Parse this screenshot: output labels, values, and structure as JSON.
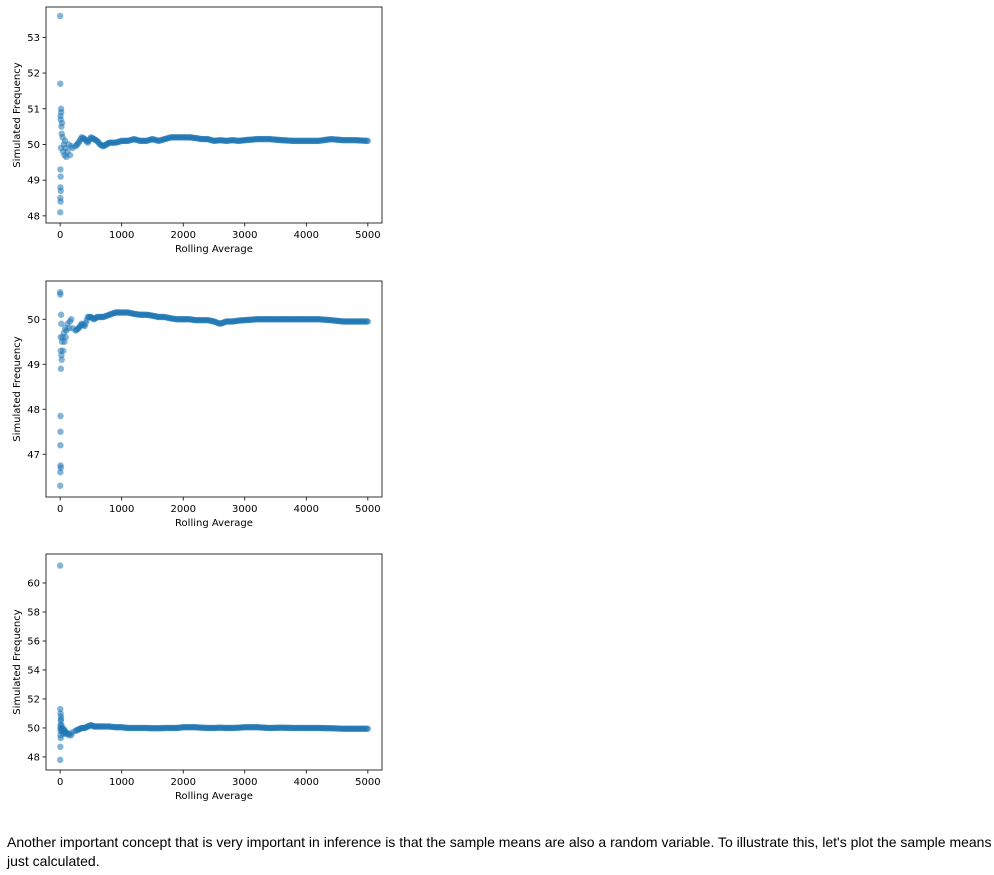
{
  "chart_data": [
    {
      "type": "scatter",
      "xlabel": "Rolling Average",
      "ylabel": "Simulated Frequency",
      "xlim": [
        -230,
        5230
      ],
      "ylim": [
        47.8,
        53.85
      ],
      "xticks": [
        0,
        1000,
        2000,
        3000,
        4000,
        5000
      ],
      "yticks": [
        48,
        49,
        50,
        51,
        52,
        53
      ],
      "grid": false,
      "legend": "none",
      "color": "#1f77b4",
      "series": [
        {
          "x": [
            0,
            1,
            2,
            3,
            4,
            5,
            6,
            7,
            8,
            9,
            10,
            12,
            15,
            18,
            20,
            25,
            30,
            40,
            50,
            60,
            70,
            80,
            90,
            100,
            120,
            140,
            160,
            180,
            200,
            250,
            300,
            350,
            400,
            450,
            500,
            550,
            600,
            650,
            700,
            750,
            800,
            900,
            1000,
            1100,
            1200,
            1300,
            1400,
            1500,
            1600,
            1700,
            1800,
            1900,
            2000,
            2100,
            2200,
            2300,
            2400,
            2500,
            2600,
            2700,
            2800,
            2900,
            3000,
            3200,
            3400,
            3600,
            3800,
            4000,
            4200,
            4400,
            4600,
            4800,
            5000
          ],
          "y": [
            53.6,
            48.1,
            51.7,
            48.5,
            48.8,
            49.3,
            50.8,
            48.4,
            49.1,
            50.7,
            48.7,
            49.9,
            51.0,
            50.9,
            50.5,
            50.3,
            50.6,
            50.2,
            49.8,
            50.0,
            49.7,
            50.1,
            49.9,
            49.65,
            49.8,
            50.0,
            49.7,
            49.95,
            49.9,
            49.95,
            50.05,
            50.2,
            50.15,
            50.05,
            50.2,
            50.15,
            50.1,
            50.0,
            49.95,
            50.0,
            50.05,
            50.05,
            50.1,
            50.1,
            50.15,
            50.1,
            50.1,
            50.15,
            50.1,
            50.15,
            50.2,
            50.2,
            50.2,
            50.2,
            50.18,
            50.15,
            50.15,
            50.1,
            50.12,
            50.1,
            50.12,
            50.1,
            50.12,
            50.15,
            50.15,
            50.12,
            50.1,
            50.1,
            50.1,
            50.15,
            50.12,
            50.12,
            50.1
          ]
        }
      ]
    },
    {
      "type": "scatter",
      "xlabel": "Rolling Average",
      "ylabel": "Simulated Frequency",
      "xlim": [
        -230,
        5230
      ],
      "ylim": [
        46.05,
        50.85
      ],
      "xticks": [
        0,
        1000,
        2000,
        3000,
        4000,
        5000
      ],
      "yticks": [
        47,
        48,
        49,
        50
      ],
      "grid": false,
      "legend": "none",
      "color": "#1f77b4",
      "series": [
        {
          "x": [
            0,
            1,
            2,
            3,
            4,
            5,
            6,
            7,
            8,
            9,
            10,
            12,
            15,
            18,
            20,
            25,
            30,
            40,
            50,
            60,
            70,
            80,
            90,
            100,
            120,
            140,
            160,
            180,
            200,
            250,
            300,
            350,
            400,
            450,
            500,
            550,
            600,
            700,
            800,
            900,
            1000,
            1100,
            1200,
            1300,
            1400,
            1500,
            1600,
            1700,
            1800,
            1900,
            2000,
            2100,
            2200,
            2300,
            2400,
            2500,
            2600,
            2700,
            2800,
            2900,
            3000,
            3200,
            3400,
            3600,
            3800,
            4000,
            4200,
            4400,
            4600,
            4800,
            5000
          ],
          "y": [
            50.6,
            46.3,
            50.55,
            46.6,
            47.2,
            47.5,
            47.85,
            46.75,
            49.6,
            46.7,
            49.3,
            48.9,
            50.1,
            49.9,
            49.2,
            49.1,
            49.5,
            49.6,
            49.3,
            49.7,
            49.5,
            49.8,
            49.6,
            49.75,
            49.9,
            49.8,
            49.95,
            50.0,
            49.8,
            49.75,
            49.8,
            49.9,
            49.85,
            50.05,
            50.05,
            50.0,
            50.05,
            50.05,
            50.1,
            50.15,
            50.15,
            50.15,
            50.12,
            50.1,
            50.1,
            50.08,
            50.05,
            50.05,
            50.02,
            50.0,
            50.0,
            50.0,
            49.98,
            49.98,
            49.98,
            49.95,
            49.9,
            49.95,
            49.95,
            49.97,
            49.98,
            50.0,
            50.0,
            50.0,
            50.0,
            50.0,
            50.0,
            49.98,
            49.95,
            49.95,
            49.95
          ]
        }
      ]
    },
    {
      "type": "scatter",
      "xlabel": "Rolling Average",
      "ylabel": "Simulated Frequency",
      "xlim": [
        -230,
        5230
      ],
      "ylim": [
        47.1,
        62.0
      ],
      "xticks": [
        0,
        1000,
        2000,
        3000,
        4000,
        5000
      ],
      "yticks": [
        48,
        50,
        52,
        54,
        56,
        58,
        60
      ],
      "grid": false,
      "legend": "none",
      "color": "#1f77b4",
      "series": [
        {
          "x": [
            0,
            1,
            2,
            3,
            4,
            5,
            6,
            7,
            8,
            9,
            10,
            12,
            15,
            18,
            20,
            25,
            30,
            40,
            50,
            60,
            70,
            80,
            90,
            100,
            120,
            140,
            160,
            180,
            200,
            250,
            300,
            350,
            400,
            450,
            500,
            550,
            600,
            700,
            800,
            900,
            1000,
            1100,
            1200,
            1300,
            1400,
            1500,
            1600,
            1700,
            1800,
            1900,
            2000,
            2100,
            2200,
            2300,
            2400,
            2500,
            2600,
            2700,
            2800,
            2900,
            3000,
            3200,
            3400,
            3600,
            3800,
            4000,
            4200,
            4400,
            4600,
            4800,
            5000
          ],
          "y": [
            61.2,
            47.8,
            51.3,
            48.7,
            50.0,
            49.5,
            51.0,
            49.8,
            50.2,
            50.5,
            49.3,
            50.8,
            50.6,
            50.0,
            50.2,
            49.8,
            49.9,
            50.0,
            49.6,
            49.9,
            49.7,
            49.8,
            49.6,
            49.7,
            49.6,
            49.5,
            49.6,
            49.5,
            49.7,
            49.8,
            49.9,
            50.0,
            50.0,
            50.1,
            50.2,
            50.1,
            50.1,
            50.1,
            50.1,
            50.05,
            50.05,
            50.0,
            50.0,
            50.0,
            50.0,
            49.98,
            49.98,
            50.0,
            50.0,
            50.0,
            50.05,
            50.05,
            50.05,
            50.02,
            50.0,
            50.0,
            50.02,
            50.0,
            50.0,
            50.02,
            50.05,
            50.05,
            50.0,
            50.02,
            50.0,
            50.0,
            50.0,
            49.98,
            49.95,
            49.95,
            49.95
          ]
        }
      ]
    }
  ],
  "text": {
    "explanation": "Another important concept that is very important in inference is that the sample means are also a random variable. To illustrate this, let's plot the sample means just calculated."
  }
}
